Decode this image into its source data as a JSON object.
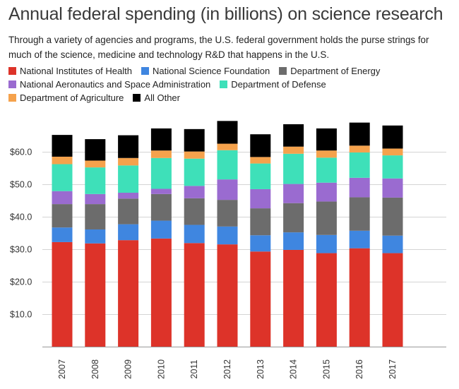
{
  "chart_data": {
    "type": "bar",
    "stacked": true,
    "title": "Annual federal spending (in billions) on science research",
    "subtitle": "Through a variety of agencies and programs, the U.S. federal government holds the purse strings for much of the science, medicine and technology R&D that happens in the U.S.",
    "xlabel": "",
    "ylabel": "",
    "ylim": [
      0,
      70
    ],
    "yticks": [
      {
        "value": 10,
        "label": "$10.0"
      },
      {
        "value": 20,
        "label": "$20.0"
      },
      {
        "value": 30,
        "label": "$30.0"
      },
      {
        "value": 40,
        "label": "$40.0"
      },
      {
        "value": 50,
        "label": "$50.0"
      },
      {
        "value": 60,
        "label": "$60.0"
      }
    ],
    "grid": true,
    "legend_position": "top",
    "categories": [
      "2007",
      "2008",
      "2009",
      "2010",
      "2011",
      "2012",
      "2013",
      "2014",
      "2015",
      "2016",
      "2017"
    ],
    "series": [
      {
        "name": "National Institutes of Health",
        "color": "#dd3329",
        "values": [
          32.3,
          31.9,
          32.9,
          33.4,
          32.0,
          31.6,
          29.4,
          29.9,
          28.9,
          30.4,
          28.9
        ]
      },
      {
        "name": "National Science Foundation",
        "color": "#3f86e0",
        "values": [
          4.5,
          4.3,
          4.9,
          5.5,
          5.6,
          5.5,
          5.0,
          5.4,
          5.6,
          5.4,
          5.4
        ]
      },
      {
        "name": "Department of Energy",
        "color": "#6c6c6c",
        "values": [
          7.2,
          7.8,
          7.9,
          8.2,
          8.2,
          8.2,
          8.3,
          9.0,
          10.3,
          10.3,
          11.7
        ]
      },
      {
        "name": "National Aeronautics and Space Administration",
        "color": "#9a6bd0",
        "values": [
          4.0,
          3.1,
          1.8,
          1.6,
          3.8,
          6.3,
          5.9,
          5.9,
          5.8,
          6.0,
          5.9
        ]
      },
      {
        "name": "Department of Defense",
        "color": "#3ee0b9",
        "values": [
          8.3,
          8.2,
          8.4,
          9.5,
          8.4,
          9.0,
          7.9,
          9.3,
          7.7,
          7.8,
          7.1
        ]
      },
      {
        "name": "Department of Agriculture",
        "color": "#f5a24c",
        "values": [
          2.3,
          2.1,
          2.3,
          2.3,
          2.2,
          2.0,
          2.0,
          2.2,
          2.2,
          2.1,
          2.1
        ]
      },
      {
        "name": "All Other",
        "color": "#000000",
        "values": [
          6.7,
          6.6,
          7.0,
          6.8,
          6.9,
          7.0,
          7.0,
          6.9,
          6.8,
          7.1,
          7.1
        ]
      }
    ]
  }
}
